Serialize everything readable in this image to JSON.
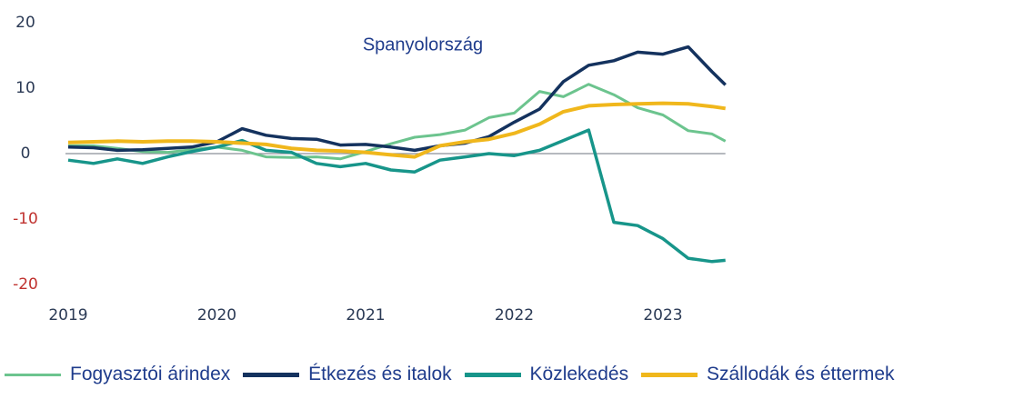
{
  "chart_data": {
    "type": "line",
    "title": "Spanyolország",
    "x": [
      2019,
      2019.17,
      2019.33,
      2019.5,
      2019.67,
      2019.83,
      2020,
      2020.17,
      2020.33,
      2020.5,
      2020.67,
      2020.83,
      2021,
      2021.17,
      2021.33,
      2021.5,
      2021.67,
      2021.83,
      2022,
      2022.17,
      2022.33,
      2022.5,
      2022.67,
      2022.83,
      2023,
      2023.17,
      2023.33,
      2023.42
    ],
    "series": [
      {
        "name": "Fogyasztói árindex",
        "color": "#6cc48e",
        "width": 3,
        "values": [
          1.2,
          1.2,
          0.8,
          0.3,
          0.2,
          0.6,
          1.0,
          0.5,
          -0.5,
          -0.6,
          -0.5,
          -0.8,
          0.3,
          1.5,
          2.5,
          2.9,
          3.6,
          5.5,
          6.2,
          9.5,
          8.7,
          10.6,
          9.0,
          7.0,
          5.9,
          3.5,
          3.0,
          1.9
        ]
      },
      {
        "name": "Étkezés és italok",
        "color": "#14325e",
        "width": 3.5,
        "values": [
          1.0,
          0.9,
          0.5,
          0.6,
          0.8,
          1.0,
          1.8,
          3.8,
          2.8,
          2.3,
          2.2,
          1.3,
          1.4,
          1.0,
          0.5,
          1.2,
          1.6,
          2.6,
          4.8,
          6.8,
          11.0,
          13.5,
          14.2,
          15.5,
          15.2,
          16.3,
          12.5,
          10.5
        ]
      },
      {
        "name": "Közlekedés",
        "color": "#17958a",
        "width": 3.5,
        "values": [
          -1.0,
          -1.5,
          -0.8,
          -1.5,
          -0.5,
          0.3,
          1.0,
          2.0,
          0.5,
          0.2,
          -1.5,
          -2.0,
          -1.5,
          -2.5,
          -2.8,
          -1.0,
          -0.5,
          0.0,
          -0.3,
          0.5,
          2.0,
          3.6,
          -10.5,
          -11.0,
          -13.0,
          -16.0,
          -16.5,
          -16.3
        ]
      },
      {
        "name": "Szállodák és éttermek",
        "color": "#f0b71c",
        "width": 4,
        "values": [
          1.7,
          1.8,
          1.9,
          1.8,
          1.9,
          1.9,
          1.8,
          1.6,
          1.4,
          0.8,
          0.5,
          0.4,
          0.2,
          -0.2,
          -0.5,
          1.2,
          1.8,
          2.2,
          3.1,
          4.5,
          6.4,
          7.3,
          7.5,
          7.6,
          7.7,
          7.6,
          7.2,
          6.9
        ]
      }
    ],
    "xlim": [
      2019,
      2023.42
    ],
    "xticks": [
      2019,
      2020,
      2021,
      2022,
      2023
    ],
    "ylim": [
      -20,
      20
    ],
    "yticks": [
      -20,
      -10,
      0,
      10,
      20
    ],
    "grid": false
  }
}
